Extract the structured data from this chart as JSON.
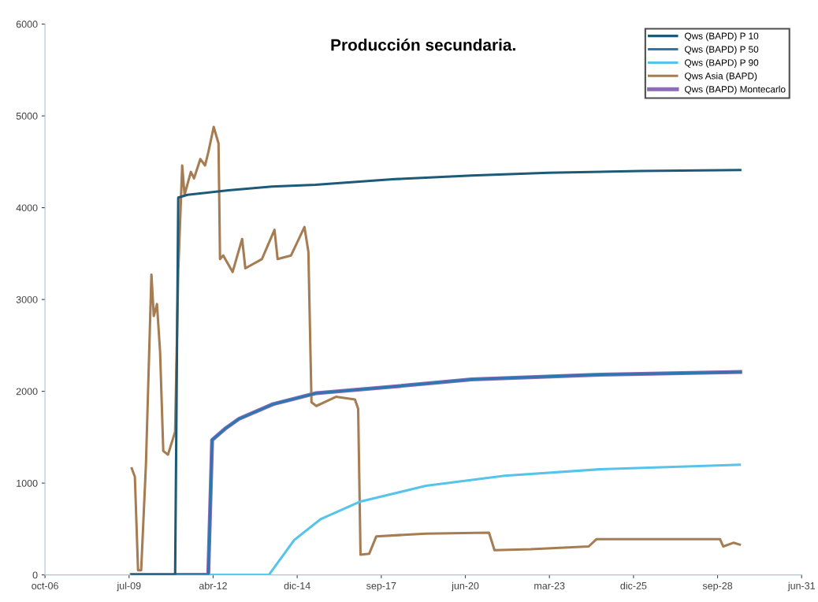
{
  "chart_data": {
    "type": "line",
    "title": "Producción secundaria.",
    "ylim": [
      0,
      6000
    ],
    "yticks": [
      0,
      1000,
      2000,
      3000,
      4000,
      5000,
      6000
    ],
    "xlim": [
      "2006-10-10",
      "2031-06-01"
    ],
    "xticks": [
      {
        "value": "2006-10-10",
        "label": "oct-06"
      },
      {
        "value": "2009-07-06",
        "label": "jul-09"
      },
      {
        "value": "2012-04-01",
        "label": "abr-12"
      },
      {
        "value": "2014-12-27",
        "label": "dic-14"
      },
      {
        "value": "2017-09-22",
        "label": "sep-17"
      },
      {
        "value": "2020-06-18",
        "label": "jun-20"
      },
      {
        "value": "2023-03-15",
        "label": "mar-23"
      },
      {
        "value": "2025-12-09",
        "label": "dic-25"
      },
      {
        "value": "2028-09-04",
        "label": "sep-28"
      },
      {
        "value": "2031-06-01",
        "label": "jun-31"
      }
    ],
    "grid": false,
    "legend": "top right",
    "marker": "none",
    "line_style": "solid",
    "series": [
      {
        "name": "Qws (BAPD) P 10",
        "color": "#1d5a78",
        "x": [
          "2009-08-07",
          "2011-01-05",
          "2011-02-11",
          "2011-06-01",
          "2012-10-01",
          "2014-03-01",
          "2015-08-01",
          "2018-02-01",
          "2020-09-01",
          "2023-03-01",
          "2026-03-01",
          "2029-06-01"
        ],
        "values": [
          0,
          0,
          4110,
          4140,
          4190,
          4230,
          4250,
          4310,
          4350,
          4380,
          4400,
          4410
        ]
      },
      {
        "name": "Qws (BAPD) P 50",
        "color": "#2a78b0",
        "x": [
          "2009-08-07",
          "2012-02-03",
          "2012-03-20",
          "2012-09-01",
          "2013-02-03",
          "2014-03-15",
          "2015-08-11",
          "2018-02-01",
          "2020-09-01",
          "2024-09-01",
          "2029-06-01"
        ],
        "values": [
          0,
          0,
          1470,
          1600,
          1700,
          1860,
          1980,
          2050,
          2130,
          2180,
          2210
        ]
      },
      {
        "name": "Qws (BAPD) P 90",
        "color": "#56c4ea",
        "x": [
          "2009-08-07",
          "2014-01-24",
          "2014-11-21",
          "2015-10-06",
          "2017-01-18",
          "2019-03-07",
          "2021-09-29",
          "2024-10-29",
          "2029-05-26"
        ],
        "values": [
          0,
          0,
          380,
          610,
          800,
          970,
          1080,
          1150,
          1200
        ]
      },
      {
        "name": "Qws Asia (BAPD)",
        "color": "#a67c52",
        "x": [
          "2009-08-07",
          "2009-09-13",
          "2009-10-21",
          "2009-11-27",
          "2010-01-23",
          "2010-03-29",
          "2010-04-26",
          "2010-06-03",
          "2010-07-10",
          "2010-08-17",
          "2010-10-12",
          "2011-01-05",
          "2011-02-11",
          "2011-03-30",
          "2011-04-27",
          "2011-07-11",
          "2011-08-18",
          "2011-11-01",
          "2011-12-27",
          "2012-02-03",
          "2012-04-08",
          "2012-06-04",
          "2012-06-22",
          "2012-07-30",
          "2012-11-19",
          "2013-03-12",
          "2013-04-19",
          "2013-11-02",
          "2014-04-01",
          "2014-05-08",
          "2014-10-15",
          "2015-03-23",
          "2015-05-09",
          "2015-06-15",
          "2015-08-11",
          "2016-04-01",
          "2016-11-13",
          "2016-12-21",
          "2017-01-18",
          "2017-05-01",
          "2017-07-25",
          "2019-03-07",
          "2021-03-26",
          "2021-05-31",
          "2022-08-05",
          "2024-06-24",
          "2024-09-26",
          "2028-10-03",
          "2028-11-10",
          "2029-03-12",
          "2029-05-26"
        ],
        "values": [
          1160,
          1070,
          50,
          50,
          1210,
          3270,
          2820,
          2950,
          2430,
          1350,
          1310,
          1560,
          3300,
          4460,
          4140,
          4390,
          4320,
          4530,
          4460,
          4600,
          4880,
          4700,
          3440,
          3480,
          3300,
          3660,
          3340,
          3440,
          3760,
          3440,
          3480,
          3790,
          3520,
          1880,
          1840,
          1940,
          1910,
          1810,
          220,
          230,
          420,
          450,
          460,
          270,
          280,
          310,
          390,
          390,
          310,
          350,
          330
        ]
      },
      {
        "name": "Qws (BAPD) Montecarlo",
        "color": "#8e6bb8",
        "x": [
          "2009-08-07",
          "2012-02-03",
          "2012-03-20",
          "2012-09-01",
          "2013-02-03",
          "2014-03-15",
          "2015-08-11",
          "2018-02-01",
          "2020-09-01",
          "2024-09-01",
          "2029-06-01"
        ],
        "values": [
          0,
          0,
          1470,
          1600,
          1700,
          1860,
          1980,
          2050,
          2130,
          2180,
          2210
        ]
      }
    ]
  }
}
